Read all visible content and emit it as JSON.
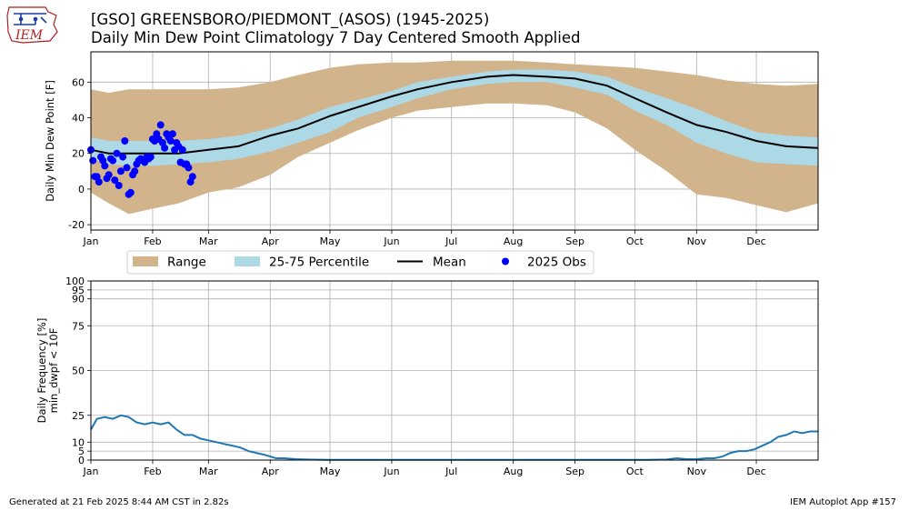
{
  "header": {
    "title_line1": "[GSO] GREENSBORO/PIEDMONT_(ASOS) (1945-2025)",
    "title_line2": "Daily Min Dew Point Climatology  7 Day Centered Smooth Applied",
    "logo_text": "IEM"
  },
  "footer": {
    "generated": "Generated at 21 Feb 2025 8:44 AM CST in 2.82s",
    "app": "IEM Autoplot App #157"
  },
  "colors": {
    "range": "#d2b48c",
    "percentile": "#add8e6",
    "mean": "#000000",
    "obs": "#0000ff",
    "frequency": "#1f77b4",
    "grid": "#b0b0b0"
  },
  "chart_data": [
    {
      "type": "area",
      "ylabel": "Daily Min Dew Point [F]",
      "xlim": [
        1,
        366
      ],
      "ylim": [
        -23,
        77
      ],
      "yticks": [
        -20,
        0,
        20,
        40,
        60
      ],
      "xtick_labels": [
        "Jan",
        "Feb",
        "Mar",
        "Apr",
        "May",
        "Jun",
        "Jul",
        "Aug",
        "Sep",
        "Oct",
        "Nov",
        "Dec"
      ],
      "xtick_days": [
        1,
        32,
        60,
        91,
        121,
        152,
        182,
        213,
        244,
        274,
        305,
        335
      ],
      "grid": true,
      "legend": {
        "placement": "below",
        "entries": [
          "Range",
          "25-75 Percentile",
          "Mean",
          "2025 Obs"
        ]
      },
      "x": [
        1,
        10,
        20,
        32,
        45,
        60,
        75,
        91,
        105,
        121,
        135,
        152,
        165,
        182,
        200,
        213,
        230,
        244,
        260,
        274,
        290,
        305,
        320,
        335,
        350,
        366
      ],
      "series": [
        {
          "name": "Range",
          "upper": [
            56,
            54,
            56,
            56,
            56,
            56,
            57,
            60,
            64,
            68,
            70,
            71,
            71,
            72,
            72,
            72,
            71,
            70,
            69,
            68,
            66,
            64,
            61,
            59,
            58,
            59
          ],
          "lower": [
            -2,
            -8,
            -14,
            -11,
            -8,
            -2,
            1,
            8,
            18,
            26,
            33,
            40,
            44,
            46,
            48,
            48,
            47,
            43,
            34,
            22,
            10,
            -3,
            -5,
            -9,
            -13,
            -8
          ]
        },
        {
          "name": "25-75 Percentile",
          "upper": [
            29,
            27,
            27,
            27,
            27,
            28,
            30,
            34,
            39,
            46,
            50,
            55,
            60,
            63,
            66,
            67,
            67,
            66,
            63,
            57,
            51,
            45,
            38,
            32,
            30,
            29
          ],
          "lower": [
            17,
            14,
            13,
            13,
            14,
            15,
            17,
            21,
            26,
            32,
            40,
            46,
            51,
            56,
            59,
            60,
            60,
            57,
            53,
            44,
            36,
            26,
            20,
            15,
            14,
            13
          ]
        },
        {
          "name": "Mean",
          "values": [
            22,
            20,
            20,
            20,
            20,
            22,
            24,
            30,
            34,
            41,
            46,
            52,
            56,
            60,
            63,
            64,
            63,
            62,
            58,
            51,
            43,
            36,
            32,
            27,
            24,
            23
          ]
        }
      ],
      "obs_2025": {
        "name": "2025 Obs",
        "days": [
          1,
          2,
          3,
          4,
          5,
          6,
          7,
          8,
          9,
          10,
          11,
          12,
          13,
          14,
          15,
          16,
          17,
          18,
          19,
          20,
          21,
          22,
          23,
          24,
          25,
          26,
          27,
          28,
          29,
          30,
          31,
          32,
          33,
          34,
          35,
          36,
          37,
          38,
          39,
          40,
          41,
          42,
          43,
          44,
          45,
          46,
          47,
          48,
          49,
          50,
          51,
          52
        ],
        "values": [
          22,
          16,
          7,
          7,
          4,
          18,
          16,
          13,
          6,
          8,
          17,
          16,
          5,
          20,
          2,
          10,
          18,
          27,
          12,
          -3,
          -2,
          8,
          10,
          14,
          16,
          17,
          16,
          15,
          18,
          17,
          18,
          28,
          27,
          31,
          28,
          36,
          26,
          23,
          31,
          29,
          27,
          31,
          22,
          26,
          24,
          15,
          22,
          14,
          14,
          12,
          4,
          7
        ]
      }
    },
    {
      "type": "line",
      "ylabel": "Daily Frequency [%]\nmin_dwpf < 10F",
      "xlim": [
        1,
        366
      ],
      "ylim": [
        0,
        100
      ],
      "yticks": [
        0,
        5,
        10,
        25,
        50,
        75,
        90,
        95,
        100
      ],
      "xtick_labels": [
        "Jan",
        "Feb",
        "Mar",
        "Apr",
        "May",
        "Jun",
        "Jul",
        "Aug",
        "Sep",
        "Oct",
        "Nov",
        "Dec"
      ],
      "xtick_days": [
        1,
        32,
        60,
        91,
        121,
        152,
        182,
        213,
        244,
        274,
        305,
        335
      ],
      "grid": true,
      "series": [
        {
          "name": "min_dwpf < 10F",
          "x": [
            1,
            4,
            8,
            12,
            16,
            20,
            24,
            28,
            32,
            36,
            40,
            44,
            48,
            52,
            56,
            60,
            64,
            68,
            72,
            76,
            80,
            84,
            88,
            91,
            94,
            98,
            104,
            110,
            120,
            140,
            180,
            220,
            260,
            280,
            290,
            295,
            300,
            305,
            310,
            314,
            318,
            322,
            326,
            330,
            334,
            338,
            342,
            346,
            350,
            354,
            358,
            362,
            366
          ],
          "values": [
            17,
            23,
            24,
            23,
            25,
            24,
            21,
            20,
            21,
            20,
            21,
            17,
            14,
            14,
            12,
            11,
            10,
            9,
            8,
            7,
            5,
            4,
            3,
            2,
            1,
            1,
            0.5,
            0.3,
            0.1,
            0.1,
            0.1,
            0.1,
            0.1,
            0.1,
            0.3,
            1,
            0.5,
            0.5,
            1,
            1,
            2,
            4,
            5,
            5,
            6,
            8,
            10,
            13,
            14,
            16,
            15,
            16,
            16
          ]
        }
      ]
    }
  ]
}
